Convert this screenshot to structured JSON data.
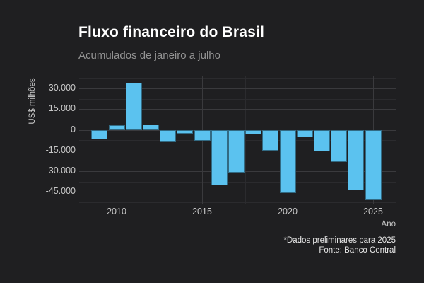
{
  "header": {
    "title": "Fluxo financeiro do Brasil",
    "subtitle": "Acumulados de janeiro a julho"
  },
  "footer": {
    "note": "*Dados preliminares para 2025",
    "source": "Fonte: Banco Central"
  },
  "chart_data": {
    "type": "bar",
    "title": "Fluxo financeiro do Brasil",
    "subtitle": "Acumulados de janeiro a julho",
    "xlabel": "Ano",
    "ylabel": "US$ milhões",
    "categories": [
      2009,
      2010,
      2011,
      2012,
      2013,
      2014,
      2015,
      2016,
      2017,
      2018,
      2019,
      2020,
      2021,
      2022,
      2023,
      2024,
      2025
    ],
    "values": [
      -7000,
      3200,
      34000,
      4000,
      -9200,
      -2700,
      -8000,
      -40000,
      -31000,
      -3300,
      -15000,
      -46000,
      -5400,
      -15700,
      -23500,
      -44000,
      -50300
    ],
    "x_ticks": [
      2010,
      2015,
      2020,
      2025
    ],
    "x_minor_ticks": [
      2012.5,
      2017.5,
      2022.5
    ],
    "y_ticks": [
      30000,
      15000,
      0,
      -15000,
      -30000,
      -45000
    ],
    "y_tick_labels": [
      "30.000",
      "15.000",
      "0",
      "-15.000",
      "-30.000",
      "-45.000"
    ],
    "y_minor_ticks": [
      37500,
      22500,
      7500,
      -7500,
      -22500,
      -37500,
      -52500
    ],
    "ylim": [
      -53700,
      38700
    ],
    "xlim": [
      2007.8,
      2026.3
    ],
    "grid": true,
    "legend": "none",
    "colors": {
      "background": "#1f1f21",
      "bar": "#5bc2ef",
      "grid_major": "#3a3a3d",
      "grid_minor": "#2b2b2e",
      "tick_text": "#c8c8c8",
      "title_text": "#ffffff",
      "subtitle_text": "#939393",
      "footer_text": "#e8e8e8"
    }
  }
}
